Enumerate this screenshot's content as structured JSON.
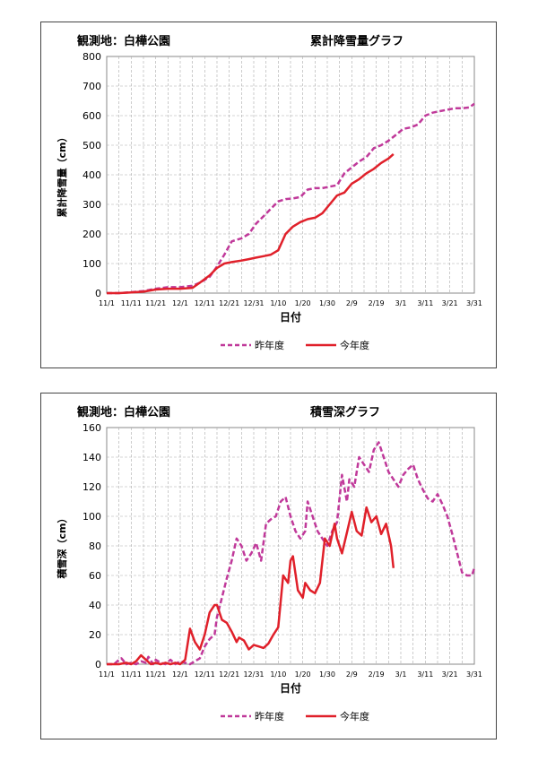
{
  "charts": [
    {
      "station": "観測地：白樺公園",
      "title": "累計降雪量グラフ",
      "ylabel": "累計降雪量（cm）",
      "xlabel": "日付",
      "legend": [
        "昨年度",
        "今年度"
      ]
    },
    {
      "station": "観測地：白樺公園",
      "title": "積雪深グラフ",
      "ylabel": "積雪深（cm）",
      "xlabel": "日付",
      "legend": [
        "昨年度",
        "今年度"
      ]
    }
  ],
  "colors": {
    "last_year": "#c0399a",
    "this_year": "#e0202a",
    "grid": "#aaaaaa"
  },
  "chart_data": [
    {
      "type": "line",
      "title": "累計降雪量グラフ",
      "xlabel": "日付",
      "ylabel": "累計降雪量（cm）",
      "categories": [
        "11/1",
        "11/11",
        "11/21",
        "12/1",
        "12/11",
        "12/21",
        "12/31",
        "1/10",
        "1/20",
        "1/30",
        "2/9",
        "2/19",
        "3/1",
        "3/11",
        "3/21",
        "3/31"
      ],
      "ylim": [
        0,
        800
      ],
      "yticks": [
        0,
        100,
        200,
        300,
        400,
        500,
        600,
        700,
        800
      ],
      "grid": true,
      "legend_position": "bottom",
      "series": [
        {
          "name": "昨年度",
          "style": "dashed",
          "x": [
            0,
            5,
            10,
            15,
            20,
            25,
            30,
            35,
            38,
            42,
            45,
            48,
            51,
            55,
            58,
            61,
            64,
            67,
            70,
            73,
            76,
            79,
            82,
            85,
            88,
            91,
            94,
            97,
            100,
            103,
            106,
            109,
            112,
            115,
            118,
            121,
            124,
            127,
            130,
            133,
            136,
            139,
            142,
            145,
            148,
            150
          ],
          "y": [
            0,
            0,
            3,
            7,
            15,
            20,
            20,
            25,
            35,
            55,
            90,
            130,
            175,
            185,
            200,
            235,
            260,
            285,
            310,
            318,
            320,
            325,
            350,
            355,
            355,
            360,
            365,
            405,
            425,
            445,
            460,
            490,
            500,
            515,
            535,
            555,
            560,
            570,
            600,
            610,
            615,
            620,
            625,
            625,
            628,
            640
          ]
        },
        {
          "name": "今年度",
          "style": "solid",
          "x": [
            0,
            5,
            10,
            15,
            20,
            25,
            30,
            35,
            38,
            42,
            45,
            48,
            51,
            55,
            58,
            61,
            64,
            67,
            70,
            73,
            76,
            79,
            82,
            85,
            88,
            91,
            94,
            97,
            100,
            103,
            106,
            109,
            112,
            115,
            117
          ],
          "y": [
            0,
            0,
            2,
            5,
            12,
            15,
            15,
            18,
            35,
            60,
            85,
            100,
            105,
            110,
            115,
            120,
            125,
            130,
            145,
            200,
            225,
            240,
            250,
            255,
            270,
            300,
            330,
            340,
            370,
            385,
            405,
            420,
            440,
            455,
            470
          ]
        }
      ]
    },
    {
      "type": "line",
      "title": "積雪深グラフ",
      "xlabel": "日付",
      "ylabel": "積雪深（cm）",
      "categories": [
        "11/1",
        "11/11",
        "11/21",
        "12/1",
        "12/11",
        "12/21",
        "12/31",
        "1/10",
        "1/20",
        "1/30",
        "2/9",
        "2/19",
        "3/1",
        "3/11",
        "3/21",
        "3/31"
      ],
      "ylim": [
        0,
        160
      ],
      "yticks": [
        0,
        20,
        40,
        60,
        80,
        100,
        120,
        140,
        160
      ],
      "grid": true,
      "legend_position": "bottom",
      "series": [
        {
          "name": "昨年度",
          "style": "dashed",
          "x": [
            0,
            3,
            5,
            6,
            8,
            10,
            12,
            14,
            16,
            17,
            19,
            20,
            22,
            24,
            26,
            28,
            30,
            32,
            34,
            36,
            38,
            40,
            42,
            44,
            45,
            47,
            49,
            51,
            53,
            55,
            57,
            59,
            61,
            63,
            65,
            67,
            69,
            71,
            73,
            75,
            77,
            79,
            81,
            82,
            84,
            86,
            88,
            90,
            92,
            94,
            96,
            98,
            99,
            101,
            103,
            105,
            107,
            109,
            111,
            113,
            115,
            117,
            119,
            121,
            123,
            125,
            127,
            129,
            131,
            133,
            135,
            137,
            139,
            141,
            143,
            145,
            147,
            149,
            150
          ],
          "y": [
            0,
            0,
            3,
            4,
            0,
            1,
            0,
            2,
            1,
            5,
            0,
            3,
            1,
            0,
            3,
            0,
            2,
            1,
            0,
            2,
            4,
            12,
            17,
            20,
            32,
            45,
            58,
            70,
            85,
            80,
            70,
            75,
            82,
            70,
            95,
            98,
            100,
            110,
            113,
            100,
            90,
            85,
            90,
            110,
            100,
            90,
            85,
            80,
            90,
            96,
            128,
            110,
            125,
            120,
            140,
            135,
            130,
            145,
            150,
            140,
            130,
            125,
            120,
            128,
            132,
            135,
            125,
            118,
            112,
            110,
            115,
            108,
            100,
            88,
            75,
            62,
            60,
            60,
            65
          ]
        },
        {
          "name": "今年度",
          "style": "solid",
          "x": [
            0,
            5,
            8,
            10,
            12,
            14,
            16,
            18,
            20,
            22,
            24,
            26,
            28,
            30,
            32,
            34,
            36,
            38,
            40,
            42,
            44,
            45,
            47,
            49,
            51,
            53,
            54,
            56,
            58,
            60,
            62,
            64,
            66,
            68,
            70,
            72,
            74,
            75,
            76,
            78,
            80,
            81,
            83,
            85,
            87,
            89,
            91,
            93,
            94,
            96,
            98,
            100,
            102,
            104,
            106,
            108,
            110,
            112,
            114,
            116,
            117
          ],
          "y": [
            0,
            0,
            1,
            0,
            2,
            6,
            3,
            0,
            1,
            0,
            1,
            0,
            1,
            0,
            3,
            24,
            15,
            10,
            20,
            35,
            40,
            40,
            30,
            28,
            22,
            15,
            18,
            16,
            10,
            13,
            12,
            11,
            14,
            20,
            25,
            60,
            55,
            70,
            73,
            50,
            45,
            55,
            50,
            48,
            55,
            85,
            80,
            95,
            85,
            75,
            89,
            103,
            90,
            87,
            106,
            96,
            100,
            88,
            95,
            80,
            65
          ]
        }
      ]
    }
  ]
}
